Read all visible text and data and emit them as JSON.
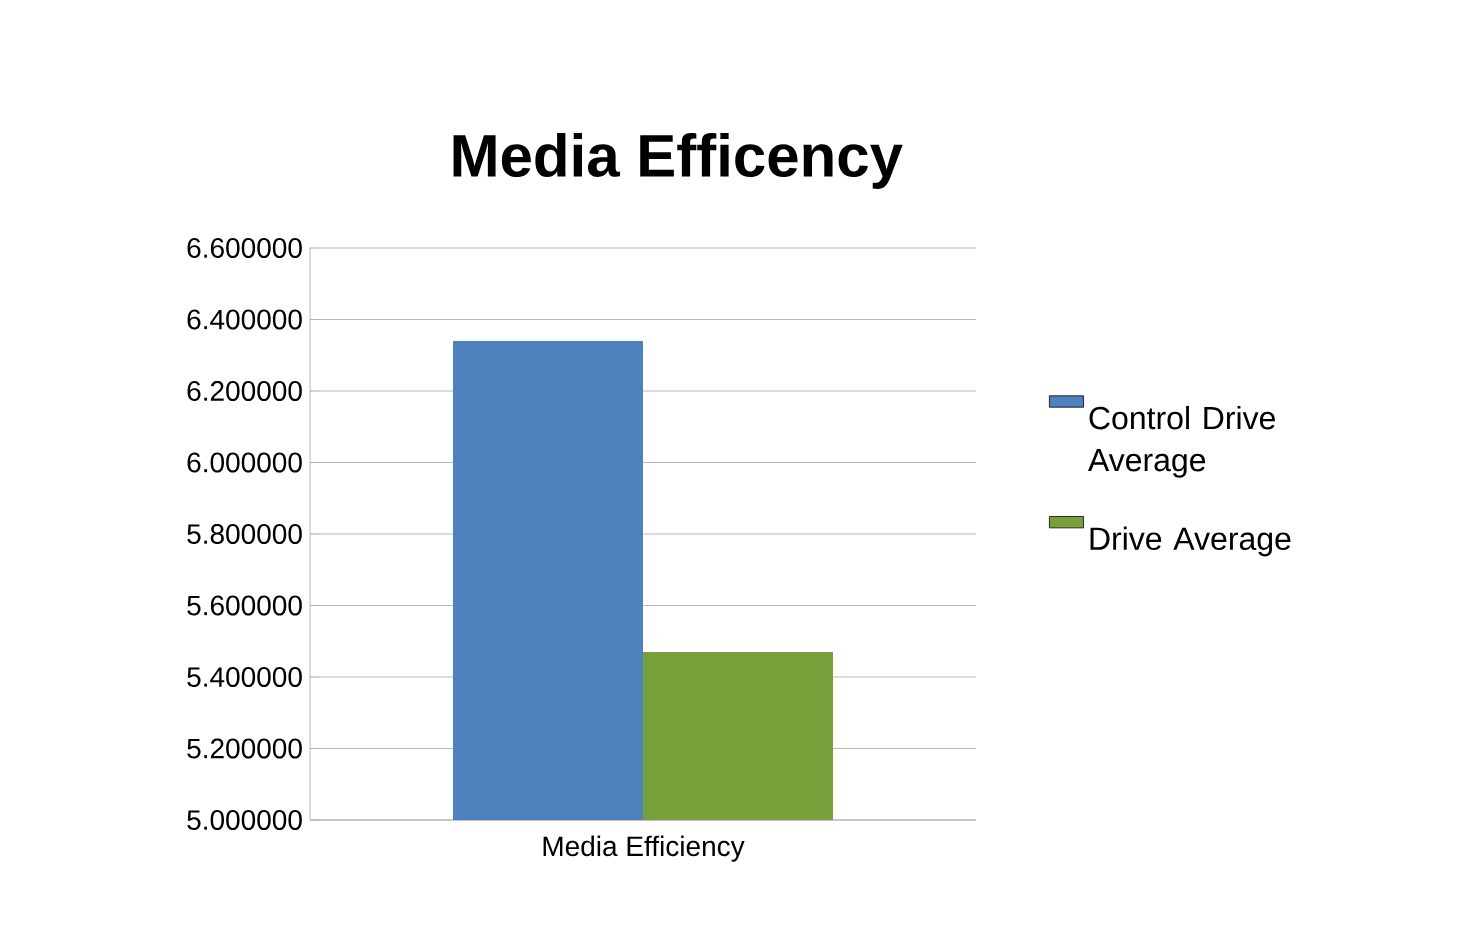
{
  "chart_data": {
    "type": "bar",
    "title": "Media Efficency",
    "categories": [
      "Media Efficiency"
    ],
    "series": [
      {
        "name": "Control Drive Average",
        "color": "#4f81bd",
        "values": [
          6.34
        ]
      },
      {
        "name": "Drive Average",
        "color": "#77a03a",
        "values": [
          5.47
        ]
      }
    ],
    "ylim": [
      5.0,
      6.6
    ],
    "yticks": [
      {
        "value": 5.0,
        "label": "5.000000"
      },
      {
        "value": 5.2,
        "label": "5.200000"
      },
      {
        "value": 5.4,
        "label": "5.400000"
      },
      {
        "value": 5.6,
        "label": "5.600000"
      },
      {
        "value": 5.8,
        "label": "5.800000"
      },
      {
        "value": 6.0,
        "label": "6.000000"
      },
      {
        "value": 6.2,
        "label": "6.200000"
      },
      {
        "value": 6.4,
        "label": "6.400000"
      },
      {
        "value": 6.6,
        "label": "6.600000"
      }
    ],
    "grid": "y",
    "legend": "right"
  }
}
